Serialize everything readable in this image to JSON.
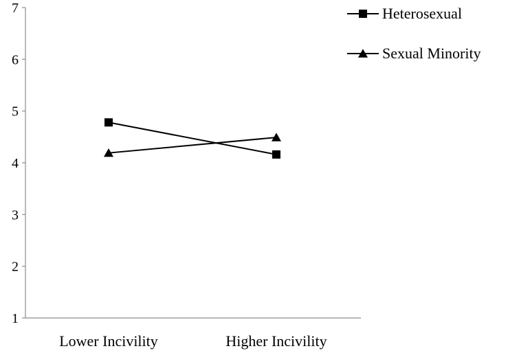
{
  "chart_data": {
    "type": "line",
    "categories": [
      "Lower Incivility",
      "Higher Incivility"
    ],
    "series": [
      {
        "name": "Heterosexual",
        "marker": "square",
        "values": [
          4.78,
          4.16
        ]
      },
      {
        "name": "Sexual Minority",
        "marker": "triangle",
        "values": [
          4.19,
          4.49
        ]
      }
    ],
    "ylim": [
      1,
      7
    ],
    "yticks": [
      "1",
      "2",
      "3",
      "4",
      "5",
      "6",
      "7"
    ],
    "grid": false,
    "legend_position": "top-right",
    "colors": {
      "line": "#000000",
      "axis": "#8c8c8c"
    }
  }
}
